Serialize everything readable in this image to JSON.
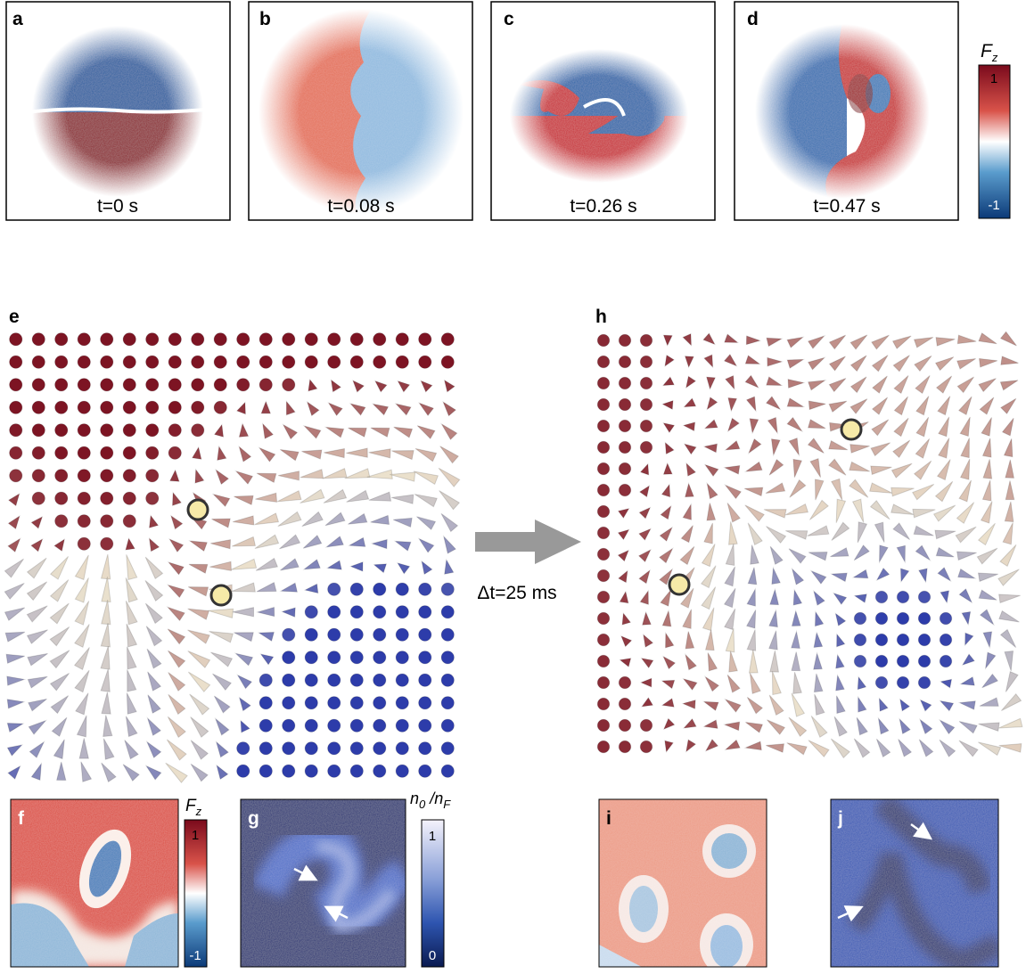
{
  "panels": [
    {
      "label": "a",
      "caption": "t=0 s"
    },
    {
      "label": "b",
      "caption": "t=0.08 s"
    },
    {
      "label": "c",
      "caption": "t=0.26 s"
    },
    {
      "label": "d",
      "caption": "t=0.47 s"
    },
    {
      "label": "e"
    },
    {
      "label": "h"
    },
    {
      "label": "f"
    },
    {
      "label": "g"
    },
    {
      "label": "i"
    },
    {
      "label": "j"
    }
  ],
  "colorbars": [
    {
      "title": [
        {
          "text": "F"
        },
        {
          "sub": "z"
        }
      ],
      "top": "1",
      "bottom": "-1"
    },
    {
      "title": [
        {
          "text": "F"
        },
        {
          "sub": "z"
        }
      ],
      "top": "1",
      "bottom": "-1"
    },
    {
      "title": [
        {
          "text": "n"
        },
        {
          "sub": "0"
        },
        {
          "text": " /n"
        },
        {
          "sub": "F"
        }
      ],
      "top": "1",
      "bottom": "0"
    }
  ],
  "step_label": "Δt=25 ms"
}
